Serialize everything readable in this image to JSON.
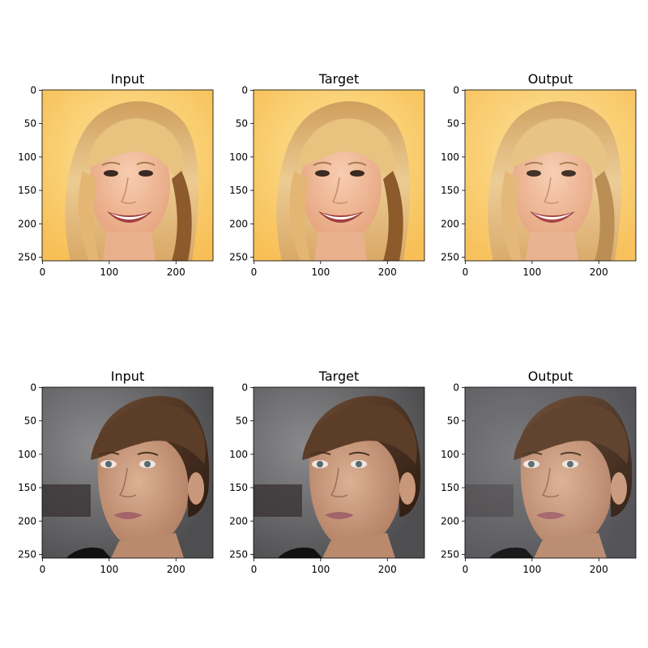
{
  "figure": {
    "panels": [
      {
        "title": "Input",
        "subject": "blonde",
        "variant": "input"
      },
      {
        "title": "Target",
        "subject": "blonde",
        "variant": "target"
      },
      {
        "title": "Output",
        "subject": "blonde",
        "variant": "output"
      },
      {
        "title": "Input",
        "subject": "brunette",
        "variant": "input"
      },
      {
        "title": "Target",
        "subject": "brunette",
        "variant": "target"
      },
      {
        "title": "Output",
        "subject": "brunette",
        "variant": "output"
      }
    ],
    "x_ticks": [
      "0",
      "100",
      "200"
    ],
    "y_ticks": [
      "0",
      "50",
      "100",
      "150",
      "200",
      "250"
    ],
    "x_tick_values": [
      0,
      100,
      200
    ],
    "y_tick_values": [
      0,
      50,
      100,
      150,
      200,
      250
    ],
    "axis_range": [
      0,
      256
    ],
    "colors": {
      "blonde_bg": "#f7bf56",
      "blonde_bg_light": "#fde59a",
      "blonde_hair": "#e2b877",
      "blonde_skin": "#f2b793",
      "brunette_bg": "#5a5a5c",
      "brunette_bg_light": "#a8a8ab",
      "brunette_hair": "#4a3222",
      "brunette_skin": "#c89a7f"
    }
  }
}
